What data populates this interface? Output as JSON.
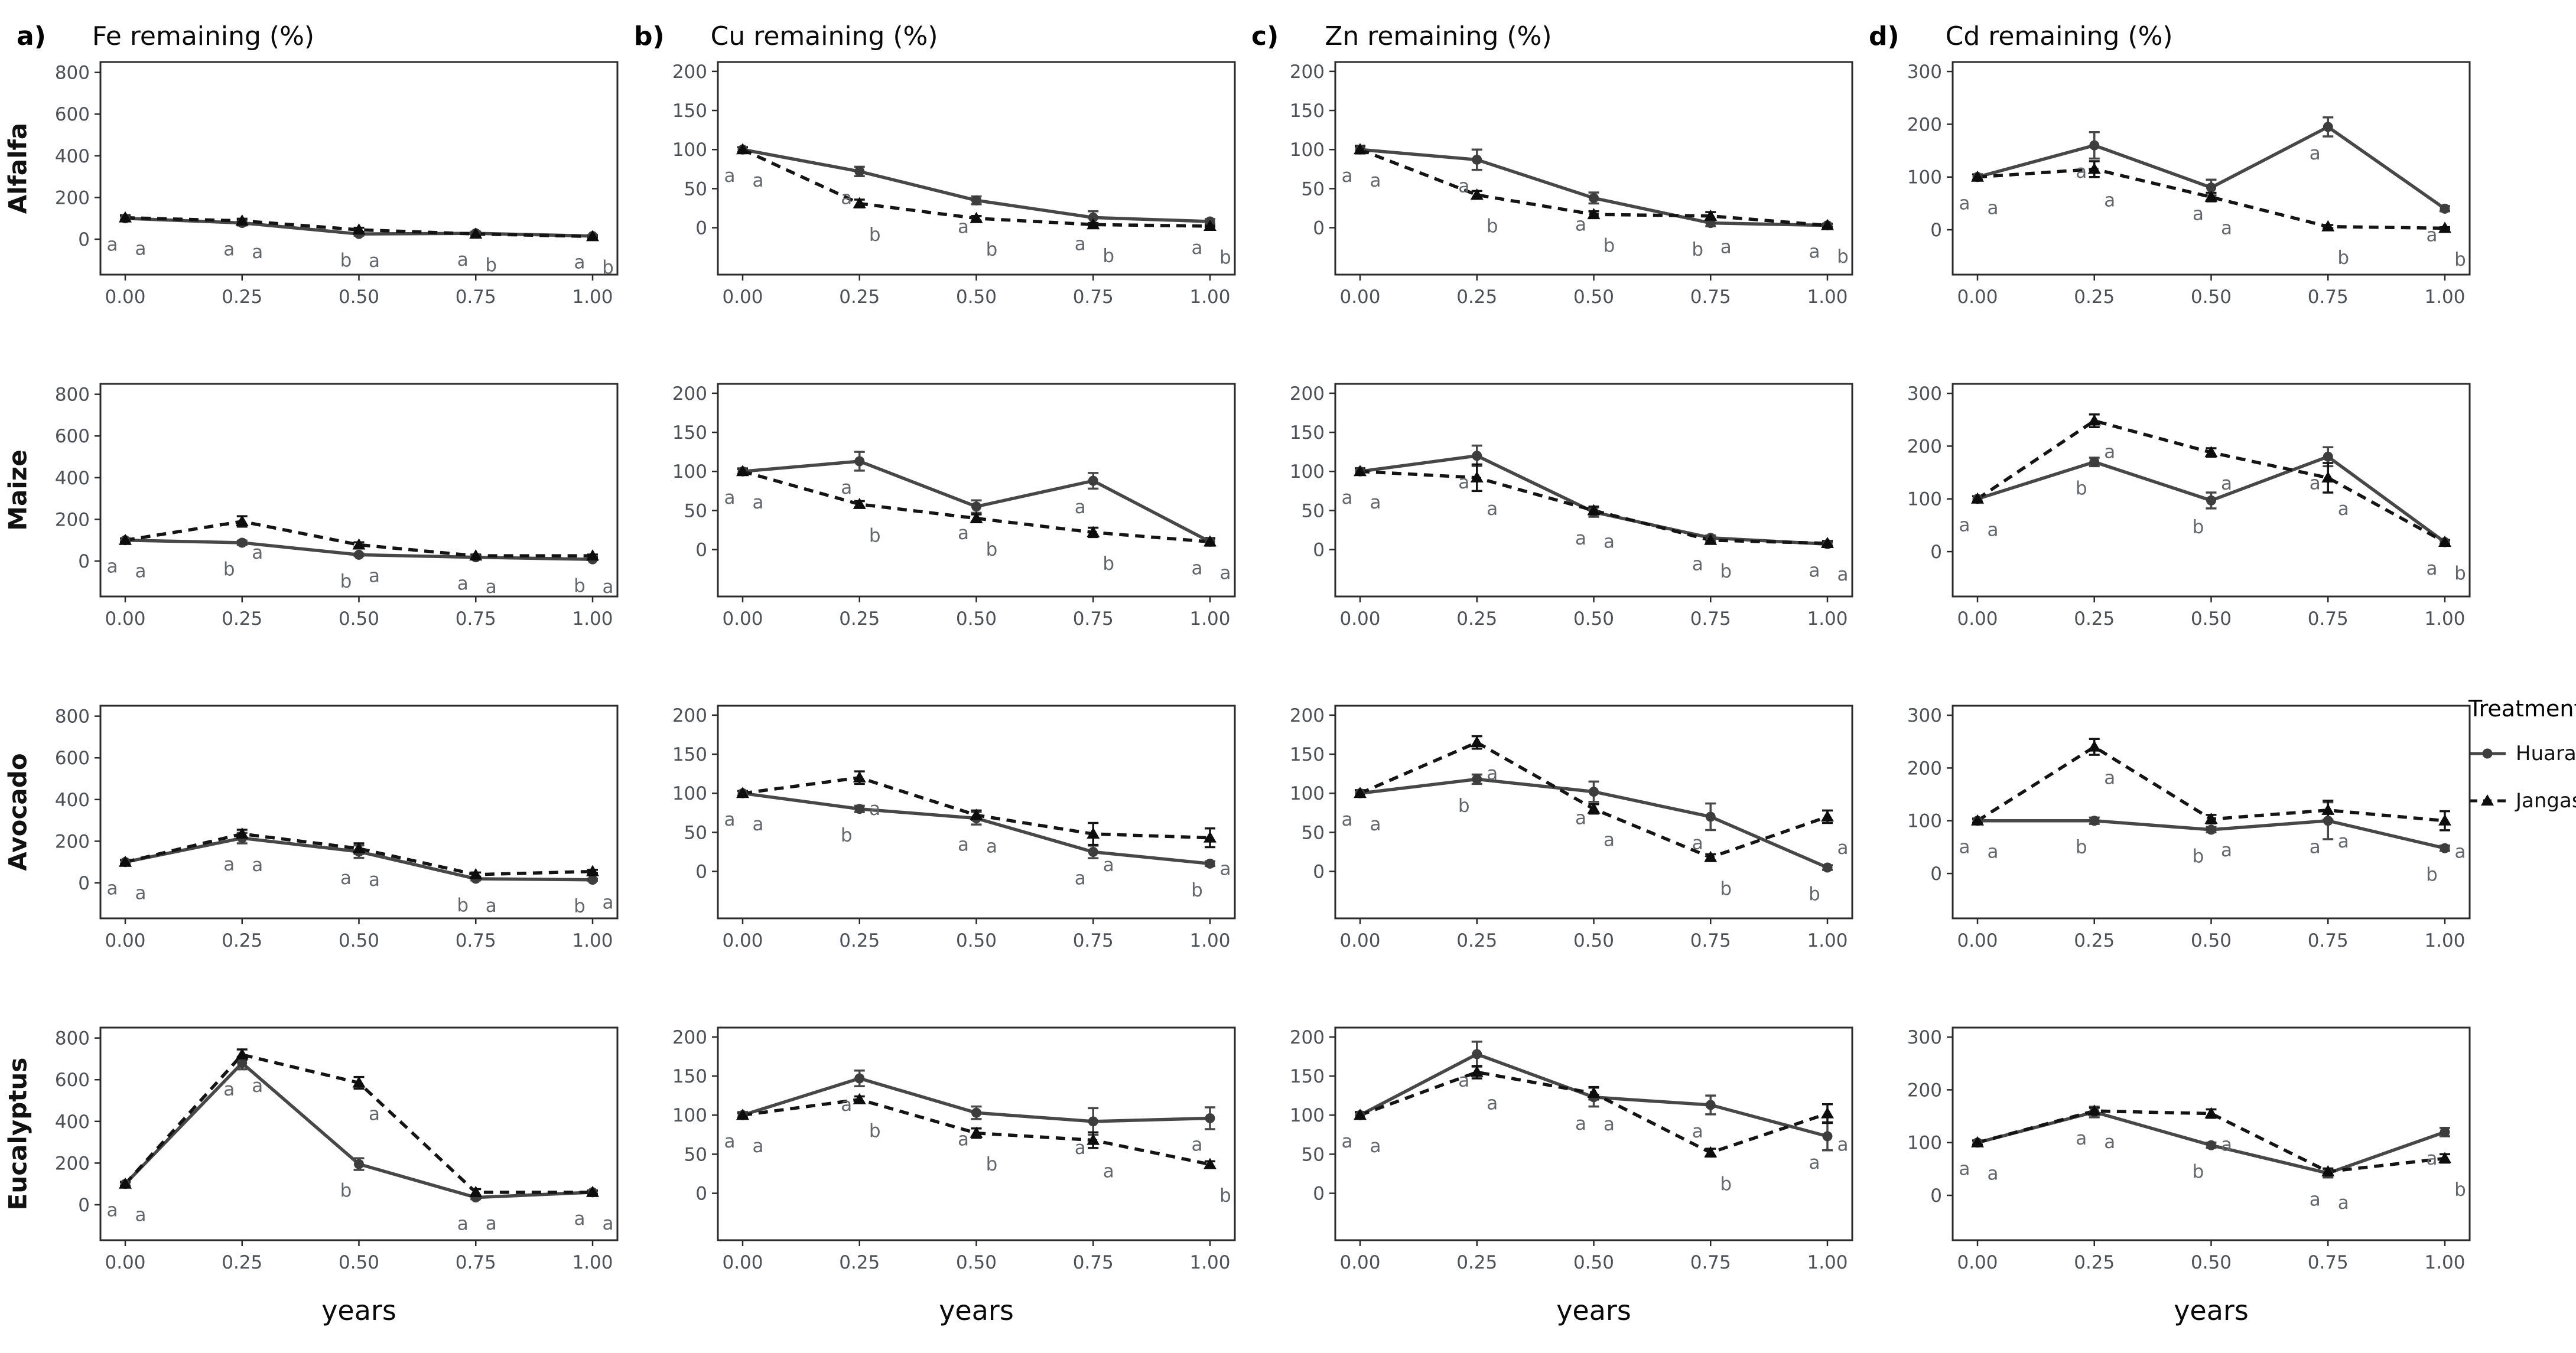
{
  "figure_title": "",
  "chart_data": {
    "type": "line",
    "grid": false,
    "legend_position": "right",
    "x": [
      0,
      0.25,
      0.5,
      0.75,
      1.0
    ],
    "x_ticklabels": [
      "0.00",
      "0.25",
      "0.50",
      "0.75",
      "1.00"
    ],
    "xlabel": "years",
    "rows": [
      "Alfalfa",
      "Maize",
      "Avocado",
      "Eucalyptus"
    ],
    "columns": [
      {
        "id": "Fe",
        "panel_label": "a)",
        "title": "Fe remaining (%)",
        "ylim": [
          0,
          800
        ],
        "yticks": [
          0,
          200,
          400,
          600,
          800
        ]
      },
      {
        "id": "Cu",
        "panel_label": "b)",
        "title": "Cu remaining (%)",
        "ylim": [
          0,
          200
        ],
        "yticks": [
          0,
          50,
          100,
          150,
          200
        ]
      },
      {
        "id": "Zn",
        "panel_label": "c)",
        "title": "Zn remaining (%)",
        "ylim": [
          0,
          200
        ],
        "yticks": [
          0,
          50,
          100,
          150,
          200
        ]
      },
      {
        "id": "Cd",
        "panel_label": "d)",
        "title": "Cd remaining (%)",
        "ylim": [
          0,
          300
        ],
        "yticks": [
          0,
          100,
          200,
          300
        ]
      }
    ],
    "series": [
      {
        "name": "Huaral",
        "line": "solid",
        "marker": "circle",
        "color": "#474747"
      },
      {
        "name": "Jangas",
        "line": "dashed",
        "marker": "triangle",
        "color": "#141414"
      }
    ],
    "legend": {
      "title": "Treatments"
    },
    "sig_letter_color": "#63676b",
    "panels": [
      {
        "row": "Alfalfa",
        "col": "Fe",
        "huaral": {
          "values": [
            100,
            78,
            25,
            28,
            15
          ],
          "errors": [
            10,
            12,
            8,
            8,
            5
          ],
          "letters": [
            "a",
            "a",
            "b",
            "a",
            "a"
          ]
        },
        "jangas": {
          "values": [
            103,
            88,
            45,
            25,
            13
          ],
          "errors": [
            12,
            10,
            10,
            6,
            5
          ],
          "letters": [
            "a",
            "a",
            "a",
            "b",
            "b"
          ]
        }
      },
      {
        "row": "Alfalfa",
        "col": "Cu",
        "huaral": {
          "values": [
            100,
            72,
            35,
            13,
            8
          ],
          "errors": [
            3,
            6,
            5,
            8,
            3
          ],
          "letters": [
            "a",
            "a",
            "a",
            "a",
            "a"
          ]
        },
        "jangas": {
          "values": [
            100,
            31,
            12,
            4,
            2
          ],
          "errors": [
            3,
            5,
            3,
            2,
            1
          ],
          "letters": [
            "a",
            "b",
            "b",
            "b",
            "b"
          ]
        }
      },
      {
        "row": "Alfalfa",
        "col": "Zn",
        "huaral": {
          "values": [
            100,
            87,
            38,
            6,
            3
          ],
          "errors": [
            5,
            13,
            7,
            4,
            2
          ],
          "letters": [
            "a",
            "a",
            "a",
            "b",
            "a"
          ]
        },
        "jangas": {
          "values": [
            100,
            42,
            17,
            15,
            3
          ],
          "errors": [
            4,
            5,
            4,
            5,
            2
          ],
          "letters": [
            "a",
            "b",
            "b",
            "a",
            "b"
          ]
        }
      },
      {
        "row": "Alfalfa",
        "col": "Cd",
        "huaral": {
          "values": [
            100,
            160,
            80,
            195,
            40
          ],
          "errors": [
            5,
            25,
            15,
            18,
            5
          ],
          "letters": [
            "a",
            "a",
            "a",
            "a",
            "a"
          ]
        },
        "jangas": {
          "values": [
            100,
            115,
            62,
            6,
            3
          ],
          "errors": [
            5,
            15,
            8,
            3,
            2
          ],
          "letters": [
            "a",
            "a",
            "a",
            "b",
            "b"
          ]
        }
      },
      {
        "row": "Maize",
        "col": "Fe",
        "huaral": {
          "values": [
            100,
            88,
            30,
            18,
            8
          ],
          "errors": [
            8,
            10,
            6,
            4,
            3
          ],
          "letters": [
            "a",
            "b",
            "b",
            "a",
            "b"
          ]
        },
        "jangas": {
          "values": [
            100,
            190,
            78,
            25,
            25
          ],
          "errors": [
            8,
            25,
            12,
            6,
            6
          ],
          "letters": [
            "a",
            "a",
            "a",
            "a",
            "a"
          ]
        }
      },
      {
        "row": "Maize",
        "col": "Cu",
        "huaral": {
          "values": [
            100,
            113,
            55,
            88,
            10
          ],
          "errors": [
            4,
            12,
            8,
            10,
            5
          ],
          "letters": [
            "a",
            "a",
            "a",
            "a",
            "a"
          ]
        },
        "jangas": {
          "values": [
            100,
            58,
            40,
            22,
            10
          ],
          "errors": [
            3,
            4,
            5,
            6,
            4
          ],
          "letters": [
            "a",
            "b",
            "b",
            "b",
            "a"
          ]
        }
      },
      {
        "row": "Maize",
        "col": "Zn",
        "huaral": {
          "values": [
            100,
            120,
            48,
            15,
            7
          ],
          "errors": [
            4,
            13,
            6,
            3,
            2
          ],
          "letters": [
            "a",
            "a",
            "a",
            "a",
            "a"
          ]
        },
        "jangas": {
          "values": [
            100,
            92,
            50,
            12,
            8
          ],
          "errors": [
            4,
            17,
            5,
            3,
            3
          ],
          "letters": [
            "a",
            "a",
            "a",
            "b",
            "a"
          ]
        }
      },
      {
        "row": "Maize",
        "col": "Cd",
        "huaral": {
          "values": [
            100,
            170,
            97,
            180,
            18
          ],
          "errors": [
            5,
            8,
            15,
            18,
            4
          ],
          "letters": [
            "a",
            "b",
            "b",
            "a",
            "a"
          ]
        },
        "jangas": {
          "values": [
            100,
            248,
            188,
            140,
            18
          ],
          "errors": [
            5,
            12,
            8,
            28,
            4
          ],
          "letters": [
            "a",
            "a",
            "a",
            "a",
            "b"
          ]
        }
      },
      {
        "row": "Avocado",
        "col": "Fe",
        "huaral": {
          "values": [
            100,
            215,
            150,
            20,
            15
          ],
          "errors": [
            10,
            25,
            30,
            8,
            5
          ],
          "letters": [
            "a",
            "a",
            "a",
            "b",
            "b"
          ]
        },
        "jangas": {
          "values": [
            100,
            235,
            165,
            40,
            55
          ],
          "errors": [
            10,
            20,
            25,
            10,
            8
          ],
          "letters": [
            "a",
            "a",
            "a",
            "a",
            "a"
          ]
        }
      },
      {
        "row": "Avocado",
        "col": "Cu",
        "huaral": {
          "values": [
            100,
            80,
            68,
            25,
            10
          ],
          "errors": [
            3,
            4,
            8,
            8,
            3
          ],
          "letters": [
            "a",
            "b",
            "a",
            "a",
            "b"
          ]
        },
        "jangas": {
          "values": [
            100,
            120,
            72,
            48,
            43
          ],
          "errors": [
            3,
            8,
            6,
            14,
            12
          ],
          "letters": [
            "a",
            "a",
            "a",
            "a",
            "a"
          ]
        }
      },
      {
        "row": "Avocado",
        "col": "Zn",
        "huaral": {
          "values": [
            100,
            118,
            102,
            70,
            5
          ],
          "errors": [
            4,
            6,
            13,
            17,
            3
          ],
          "letters": [
            "a",
            "b",
            "a",
            "a",
            "b"
          ]
        },
        "jangas": {
          "values": [
            100,
            165,
            80,
            18,
            70
          ],
          "errors": [
            4,
            8,
            6,
            4,
            8
          ],
          "letters": [
            "a",
            "a",
            "a",
            "b",
            "a"
          ]
        }
      },
      {
        "row": "Avocado",
        "col": "Cd",
        "huaral": {
          "values": [
            100,
            100,
            83,
            100,
            48
          ],
          "errors": [
            4,
            6,
            5,
            35,
            5
          ],
          "letters": [
            "a",
            "b",
            "b",
            "a",
            "b"
          ]
        },
        "jangas": {
          "values": [
            100,
            240,
            103,
            120,
            100
          ],
          "errors": [
            4,
            15,
            8,
            18,
            18
          ],
          "letters": [
            "a",
            "a",
            "a",
            "a",
            "a"
          ]
        }
      },
      {
        "row": "Eucalyptus",
        "col": "Fe",
        "huaral": {
          "values": [
            100,
            680,
            195,
            35,
            60
          ],
          "errors": [
            10,
            30,
            28,
            8,
            8
          ],
          "letters": [
            "a",
            "a",
            "b",
            "a",
            "a"
          ]
        },
        "jangas": {
          "values": [
            100,
            720,
            585,
            60,
            60
          ],
          "errors": [
            10,
            25,
            28,
            15,
            8
          ],
          "letters": [
            "a",
            "a",
            "a",
            "a",
            "a"
          ]
        }
      },
      {
        "row": "Eucalyptus",
        "col": "Cu",
        "huaral": {
          "values": [
            100,
            147,
            103,
            92,
            96
          ],
          "errors": [
            4,
            10,
            8,
            17,
            14
          ],
          "letters": [
            "a",
            "a",
            "a",
            "a",
            "a"
          ]
        },
        "jangas": {
          "values": [
            100,
            120,
            77,
            68,
            37
          ],
          "errors": [
            3,
            4,
            6,
            10,
            4
          ],
          "letters": [
            "a",
            "b",
            "b",
            "a",
            "b"
          ]
        }
      },
      {
        "row": "Eucalyptus",
        "col": "Zn",
        "huaral": {
          "values": [
            100,
            178,
            123,
            113,
            73
          ],
          "errors": [
            4,
            16,
            12,
            12,
            18
          ],
          "letters": [
            "a",
            "a",
            "a",
            "a",
            "a"
          ]
        },
        "jangas": {
          "values": [
            100,
            155,
            128,
            52,
            102
          ],
          "errors": [
            4,
            8,
            8,
            5,
            12
          ],
          "letters": [
            "a",
            "a",
            "a",
            "b",
            "a"
          ]
        }
      },
      {
        "row": "Eucalyptus",
        "col": "Cd",
        "huaral": {
          "values": [
            100,
            158,
            95,
            42,
            120
          ],
          "errors": [
            4,
            10,
            5,
            8,
            8
          ],
          "letters": [
            "a",
            "a",
            "b",
            "a",
            "a"
          ]
        },
        "jangas": {
          "values": [
            100,
            160,
            155,
            45,
            70
          ],
          "errors": [
            4,
            6,
            8,
            6,
            8
          ],
          "letters": [
            "a",
            "a",
            "a",
            "a",
            "b"
          ]
        }
      }
    ]
  }
}
